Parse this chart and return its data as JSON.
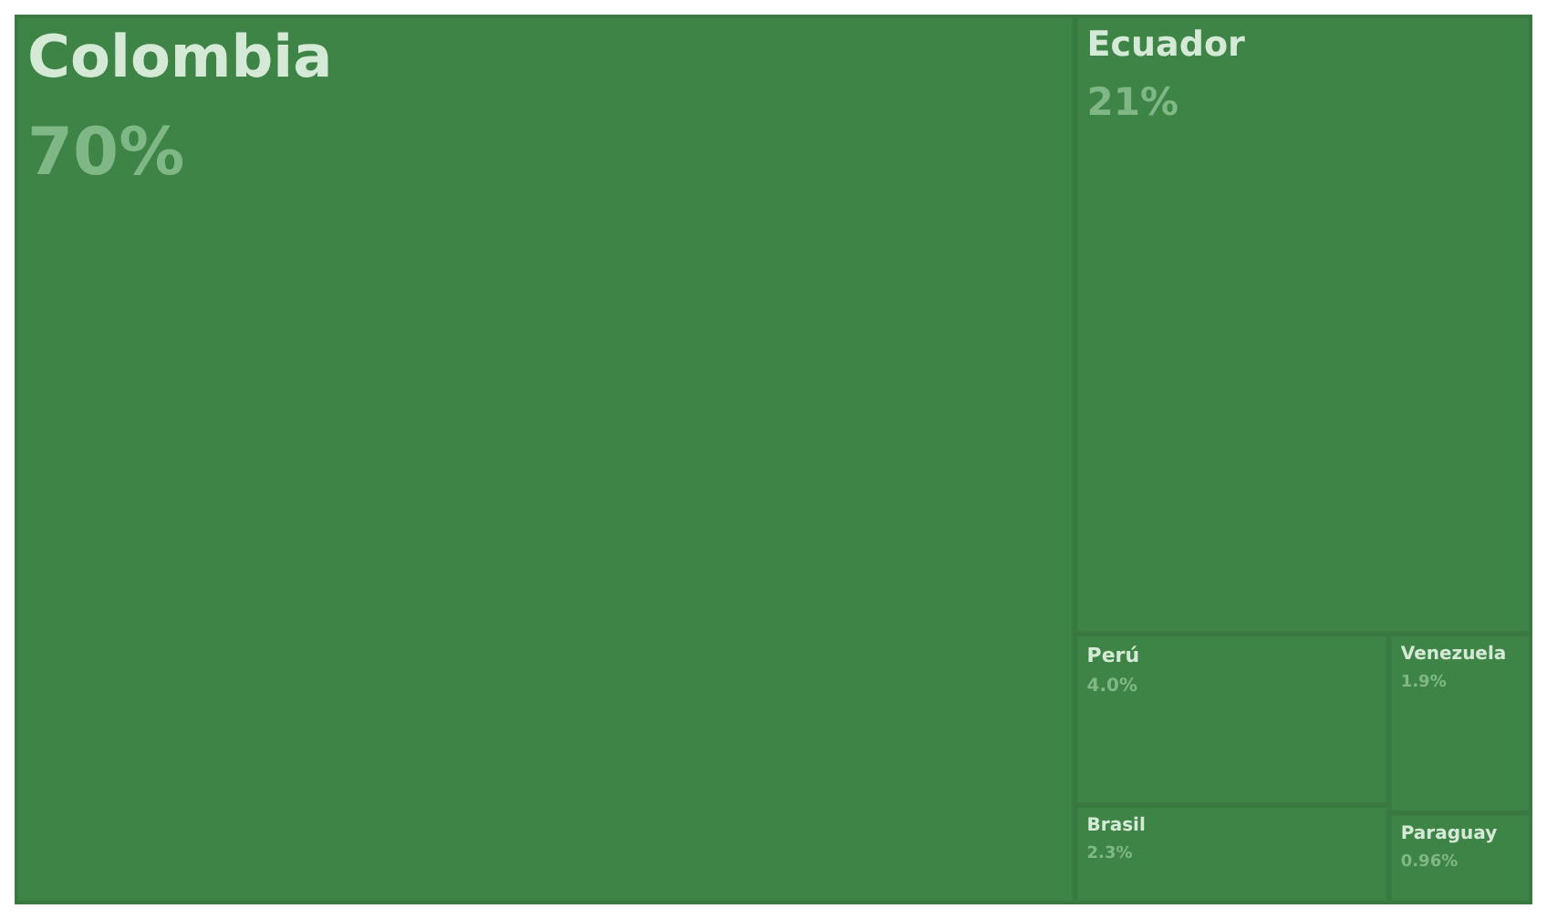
{
  "chart_data": {
    "type": "other",
    "categories": [
      "Colombia",
      "Ecuador",
      "Perú",
      "Brasil",
      "Venezuela",
      "Paraguay"
    ],
    "values": [
      70,
      21,
      4.0,
      2.3,
      1.9,
      0.96
    ],
    "value_labels": [
      "70%",
      "21%",
      "4.0%",
      "2.3%",
      "1.9%",
      "0.96%"
    ],
    "color": "#3f8447"
  }
}
